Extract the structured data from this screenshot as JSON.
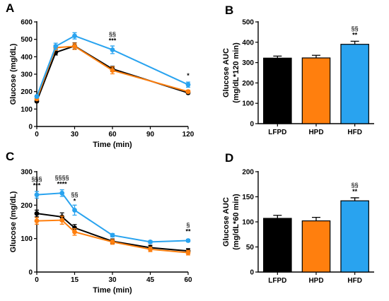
{
  "colors": {
    "LFPD": "#000000",
    "HPD": "#ff7f0e",
    "HFD": "#29a3ef",
    "sig_section": "#3a3a3a",
    "sig_star": "#000000"
  },
  "chart_data": [
    {
      "panel": "A",
      "type": "line",
      "xlabel": "Time (min)",
      "ylabel": "Glucose (mg/dL)",
      "xlim": [
        0,
        120
      ],
      "ylim": [
        0,
        600
      ],
      "xticks": [
        "0",
        "30",
        "60",
        "90",
        "120"
      ],
      "yticks": [
        "0",
        "100",
        "200",
        "300",
        "400",
        "500",
        "600"
      ],
      "x": [
        0,
        15,
        30,
        60,
        120
      ],
      "series": [
        {
          "key": "LFPD",
          "values": [
            145,
            425,
            462,
            330,
            193
          ],
          "err": [
            6,
            15,
            18,
            15,
            6
          ]
        },
        {
          "key": "HPD",
          "values": [
            158,
            452,
            460,
            322,
            200
          ],
          "err": [
            6,
            15,
            18,
            20,
            8
          ]
        },
        {
          "key": "HFD",
          "values": [
            172,
            460,
            520,
            440,
            240
          ],
          "err": [
            8,
            18,
            18,
            22,
            15
          ]
        }
      ],
      "annotations": [
        {
          "x": 60,
          "value": 440,
          "lines": [
            "§§",
            "***"
          ]
        },
        {
          "x": 120,
          "value": 240,
          "lines": [
            "*"
          ]
        }
      ]
    },
    {
      "panel": "B",
      "type": "bar",
      "ylabel_lines": [
        "Glucose AUC",
        "(mg/dL*120 min)"
      ],
      "categories": [
        "LFPD",
        "HPD",
        "HFD"
      ],
      "values": [
        322,
        323,
        390
      ],
      "err": [
        10,
        13,
        15
      ],
      "ylim": [
        0,
        500
      ],
      "yticks": [
        "0",
        "100",
        "200",
        "300",
        "400",
        "500"
      ],
      "annotations": [
        {
          "category": "HFD",
          "lines": [
            "§§",
            "**"
          ]
        }
      ]
    },
    {
      "panel": "C",
      "type": "line",
      "xlabel": "Time (min)",
      "ylabel": "Glucose (mg/dL)",
      "xlim": [
        0,
        60
      ],
      "ylim": [
        0,
        300
      ],
      "xticks": [
        "0",
        "15",
        "30",
        "45",
        "60"
      ],
      "yticks": [
        "0",
        "100",
        "200",
        "300"
      ],
      "x": [
        0,
        10,
        15,
        30,
        45,
        60
      ],
      "series": [
        {
          "key": "LFPD",
          "values": [
            175,
            165,
            132,
            92,
            73,
            63
          ],
          "err": [
            10,
            12,
            10,
            7,
            7,
            7
          ]
        },
        {
          "key": "HPD",
          "values": [
            153,
            155,
            120,
            90,
            68,
            58
          ],
          "err": [
            10,
            12,
            10,
            7,
            7,
            7
          ]
        },
        {
          "key": "HFD",
          "values": [
            231,
            236,
            185,
            110,
            90,
            94
          ],
          "err": [
            10,
            10,
            15,
            5,
            4,
            4
          ]
        }
      ],
      "annotations": [
        {
          "x": 0,
          "value": 231,
          "lines": [
            "§§§",
            "***"
          ]
        },
        {
          "x": 10,
          "value": 236,
          "lines": [
            "§§§§",
            "****"
          ]
        },
        {
          "x": 15,
          "value": 185,
          "lines": [
            "§§",
            "*"
          ]
        },
        {
          "x": 60,
          "value": 94,
          "lines": [
            "§",
            "**"
          ]
        }
      ]
    },
    {
      "panel": "D",
      "type": "bar",
      "ylabel_lines": [
        "Glucose AUC",
        "(mg/dL*60 min)"
      ],
      "categories": [
        "LFPD",
        "HPD",
        "HFD"
      ],
      "values": [
        107,
        102,
        142
      ],
      "err": [
        6,
        7,
        6
      ],
      "ylim": [
        0,
        200
      ],
      "yticks": [
        "0",
        "50",
        "100",
        "150",
        "200"
      ],
      "annotations": [
        {
          "category": "HFD",
          "lines": [
            "§§",
            "**"
          ]
        }
      ]
    }
  ]
}
